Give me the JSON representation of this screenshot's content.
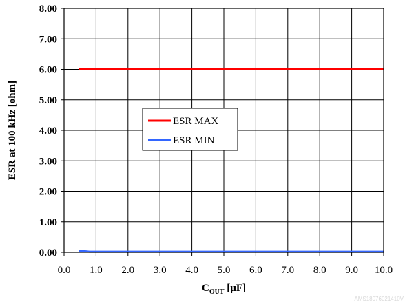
{
  "chart_data": {
    "type": "line",
    "xlabel_main": "C",
    "xlabel_sub": "OUT",
    "xlabel_unit": " [µF]",
    "ylabel": "ESR at 100 kHz [ohm]",
    "xlim": [
      0,
      10
    ],
    "ylim": [
      0,
      8
    ],
    "x_ticks": [
      0,
      1,
      2,
      3,
      4,
      5,
      6,
      7,
      8,
      9,
      10
    ],
    "x_tick_labels": [
      "0.0",
      "1.0",
      "2.0",
      "3.0",
      "4.0",
      "5.0",
      "6.0",
      "7.0",
      "8.0",
      "9.0",
      "10.0"
    ],
    "y_ticks": [
      0,
      1,
      2,
      3,
      4,
      5,
      6,
      7,
      8
    ],
    "y_tick_labels": [
      "0.00",
      "1.00",
      "2.00",
      "3.00",
      "4.00",
      "5.00",
      "6.00",
      "7.00",
      "8.00"
    ],
    "grid": true,
    "legend_position": "center-left",
    "series": [
      {
        "name": "ESR MAX",
        "color": "#ff0000",
        "x": [
          0.47,
          10
        ],
        "y": [
          6.0,
          6.0
        ]
      },
      {
        "name": "ESR MIN",
        "color": "#3366ff",
        "x": [
          0.47,
          0.8,
          10
        ],
        "y": [
          0.05,
          0.02,
          0.02
        ]
      }
    ],
    "footer_code": "AMS18076021410V"
  }
}
